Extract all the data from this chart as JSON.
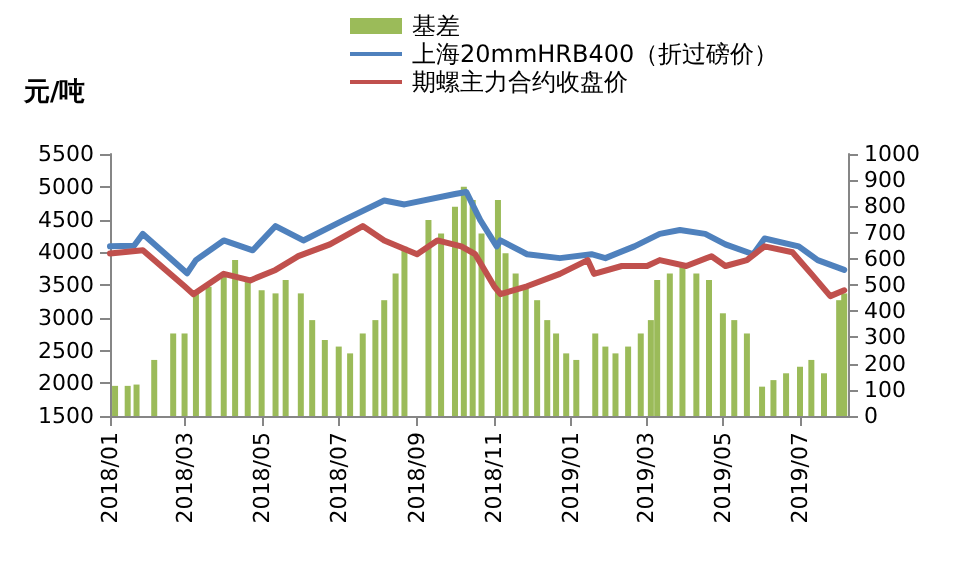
{
  "chart_data": {
    "type": "line",
    "ylabel": "元/吨",
    "legend": "top",
    "grid": false,
    "marker": "none",
    "line_style": "solid",
    "xlim": [
      "2018-01-01",
      "2019-08-08"
    ],
    "xticks": [
      {
        "value": "2018-01-01",
        "label": "2018/01"
      },
      {
        "value": "2018-03-01",
        "label": "2018/03"
      },
      {
        "value": "2018-05-01",
        "label": "2018/05"
      },
      {
        "value": "2018-07-01",
        "label": "2018/07"
      },
      {
        "value": "2018-09-01",
        "label": "2018/09"
      },
      {
        "value": "2018-11-01",
        "label": "2018/11"
      },
      {
        "value": "2019-01-01",
        "label": "2019/01"
      },
      {
        "value": "2019-03-01",
        "label": "2019/03"
      },
      {
        "value": "2019-05-01",
        "label": "2019/05"
      },
      {
        "value": "2019-07-01",
        "label": "2019/07"
      }
    ],
    "ylim": [
      1500,
      5500
    ],
    "yticks": [
      1500,
      2000,
      2500,
      3000,
      3500,
      4000,
      4500,
      5000,
      5500
    ],
    "y2lim": [
      0,
      1000
    ],
    "y2ticks": [
      0,
      100,
      200,
      300,
      400,
      500,
      600,
      700,
      800,
      900,
      1000
    ],
    "series": [
      {
        "name": "基差",
        "type": "bar",
        "axis": "y2",
        "color": "#9bbb59",
        "x": [
          "2018-01-05",
          "2018-01-15",
          "2018-01-22",
          "2018-02-05",
          "2018-02-20",
          "2018-03-01",
          "2018-03-10",
          "2018-03-20",
          "2018-04-01",
          "2018-04-10",
          "2018-04-20",
          "2018-05-01",
          "2018-05-12",
          "2018-05-20",
          "2018-06-01",
          "2018-06-10",
          "2018-06-20",
          "2018-07-01",
          "2018-07-10",
          "2018-07-20",
          "2018-07-30",
          "2018-08-06",
          "2018-08-15",
          "2018-08-22",
          "2018-09-10",
          "2018-09-20",
          "2018-10-01",
          "2018-10-08",
          "2018-10-15",
          "2018-10-22",
          "2018-11-04",
          "2018-11-10",
          "2018-11-18",
          "2018-11-26",
          "2018-12-05",
          "2018-12-13",
          "2018-12-20",
          "2018-12-28",
          "2019-01-05",
          "2019-01-20",
          "2019-01-28",
          "2019-02-05",
          "2019-02-15",
          "2019-02-25",
          "2019-03-05",
          "2019-03-10",
          "2019-03-20",
          "2019-03-30",
          "2019-04-10",
          "2019-04-20",
          "2019-05-01",
          "2019-05-10",
          "2019-05-20",
          "2019-06-01",
          "2019-06-10",
          "2019-06-20",
          "2019-07-01",
          "2019-07-10",
          "2019-07-20",
          "2019-08-01",
          "2019-08-05"
        ],
        "values": [
          115,
          115,
          120,
          214,
          315,
          315,
          468,
          493,
          544,
          595,
          519,
          480,
          468,
          519,
          468,
          366,
          290,
          265,
          239,
          315,
          366,
          442,
          544,
          646,
          748,
          697,
          799,
          875,
          824,
          697,
          824,
          621,
          544,
          493,
          442,
          366,
          315,
          239,
          214,
          315,
          265,
          239,
          265,
          315,
          366,
          519,
          544,
          570,
          544,
          519,
          392,
          366,
          315,
          112,
          137,
          163,
          188,
          214,
          163,
          442,
          468
        ]
      },
      {
        "name": "上海20mmHRB400（折过磅价）",
        "color": "#4f81bd",
        "x": [
          "2018-01-01",
          "2018-01-20",
          "2018-01-27",
          "2018-03-03",
          "2018-03-10",
          "2018-04-01",
          "2018-04-24",
          "2018-05-12",
          "2018-06-03",
          "2018-07-05",
          "2018-08-06",
          "2018-08-22",
          "2018-10-01",
          "2018-10-10",
          "2018-10-21",
          "2018-11-03",
          "2018-11-06",
          "2018-11-27",
          "2018-12-23",
          "2019-01-17",
          "2019-01-28",
          "2019-02-20",
          "2019-03-12",
          "2019-03-28",
          "2019-04-17",
          "2019-05-03",
          "2019-05-25",
          "2019-06-03",
          "2019-06-30",
          "2019-07-15",
          "2019-08-05"
        ],
        "values": [
          4090,
          4100,
          4280,
          3680,
          3880,
          4180,
          4030,
          4400,
          4180,
          4490,
          4790,
          4730,
          4890,
          4920,
          4490,
          4090,
          4180,
          3970,
          3910,
          3970,
          3910,
          4090,
          4280,
          4340,
          4280,
          4120,
          3970,
          4210,
          4090,
          3880,
          3730
        ]
      },
      {
        "name": "期螺主力合约收盘价",
        "color": "#c0504d",
        "x": [
          "2018-01-01",
          "2018-01-27",
          "2018-03-01",
          "2018-03-08",
          "2018-04-01",
          "2018-04-22",
          "2018-05-12",
          "2018-05-30",
          "2018-06-24",
          "2018-07-20",
          "2018-08-06",
          "2018-09-01",
          "2018-09-17",
          "2018-10-06",
          "2018-10-17",
          "2018-11-01",
          "2018-11-06",
          "2018-11-27",
          "2018-12-23",
          "2019-01-14",
          "2019-01-19",
          "2019-02-10",
          "2019-03-02",
          "2019-03-12",
          "2019-04-02",
          "2019-04-22",
          "2019-05-03",
          "2019-05-20",
          "2019-06-03",
          "2019-06-25",
          "2019-07-10",
          "2019-07-25",
          "2019-08-05"
        ],
        "values": [
          3980,
          4030,
          3480,
          3360,
          3670,
          3570,
          3730,
          3940,
          4120,
          4400,
          4180,
          3970,
          4180,
          4090,
          3970,
          3480,
          3360,
          3480,
          3670,
          3880,
          3670,
          3790,
          3790,
          3880,
          3790,
          3940,
          3790,
          3880,
          4090,
          4000,
          3670,
          3330,
          3420
        ]
      }
    ]
  }
}
